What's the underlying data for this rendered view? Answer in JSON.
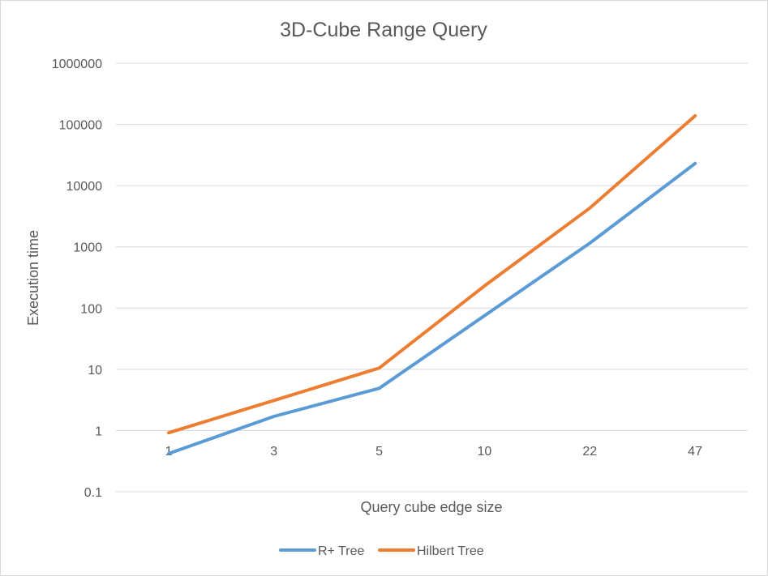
{
  "chart_data": {
    "type": "line",
    "title": "3D-Cube Range Query",
    "xlabel": "Query cube edge size",
    "ylabel": "Execution time",
    "categories": [
      "1",
      "3",
      "5",
      "10",
      "22",
      "47"
    ],
    "y_scale": "log",
    "ylim": [
      0.1,
      1000000
    ],
    "y_ticks": [
      "0.1",
      "1",
      "10",
      "100",
      "1000",
      "10000",
      "100000",
      "1000000"
    ],
    "grid": true,
    "legend_position": "bottom",
    "series": [
      {
        "name": "R+ Tree",
        "color": "#5b9bd5",
        "values": [
          0.42,
          1.7,
          4.9,
          75,
          1150,
          23000
        ]
      },
      {
        "name": "Hilbert Tree",
        "color": "#ed7d31",
        "values": [
          0.92,
          3.1,
          10.5,
          230,
          4300,
          138000
        ]
      }
    ]
  }
}
